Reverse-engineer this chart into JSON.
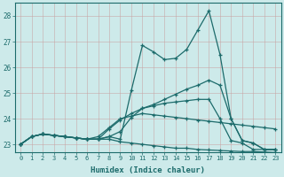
{
  "xlabel": "Humidex (Indice chaleur)",
  "bg_color": "#cdeaea",
  "grid_color": "#aed4d4",
  "line_color": "#1c6b6b",
  "xlim": [
    -0.5,
    23.5
  ],
  "ylim": [
    22.7,
    28.5
  ],
  "yticks": [
    23,
    24,
    25,
    26,
    27,
    28
  ],
  "xticks": [
    0,
    1,
    2,
    3,
    4,
    5,
    6,
    7,
    8,
    9,
    10,
    11,
    12,
    13,
    14,
    15,
    16,
    17,
    18,
    19,
    20,
    21,
    22,
    23
  ],
  "lines": [
    [
      23.0,
      23.3,
      23.4,
      23.35,
      23.3,
      23.25,
      23.2,
      23.2,
      23.3,
      23.2,
      25.1,
      26.85,
      26.6,
      26.3,
      26.35,
      26.7,
      27.45,
      28.2,
      26.5,
      24.0,
      23.15,
      23.05,
      22.8,
      22.8
    ],
    [
      23.0,
      23.3,
      23.4,
      23.35,
      23.3,
      23.25,
      23.2,
      23.2,
      23.3,
      23.5,
      24.05,
      24.4,
      24.55,
      24.75,
      24.95,
      25.15,
      25.3,
      25.5,
      25.3,
      24.0,
      23.15,
      23.05,
      22.8,
      22.8
    ],
    [
      23.0,
      23.3,
      23.4,
      23.35,
      23.3,
      23.25,
      23.2,
      23.2,
      23.6,
      23.95,
      24.2,
      24.4,
      24.5,
      24.6,
      24.65,
      24.7,
      24.75,
      24.75,
      24.0,
      23.15,
      23.05,
      22.8,
      22.8,
      22.8
    ],
    [
      23.0,
      23.3,
      23.4,
      23.35,
      23.3,
      23.25,
      23.2,
      23.3,
      23.65,
      24.0,
      24.1,
      24.2,
      24.15,
      24.1,
      24.05,
      24.0,
      23.95,
      23.9,
      23.85,
      23.8,
      23.75,
      23.7,
      23.65,
      23.6
    ],
    [
      23.0,
      23.3,
      23.4,
      23.35,
      23.3,
      23.25,
      23.2,
      23.2,
      23.2,
      23.1,
      23.05,
      23.0,
      22.95,
      22.9,
      22.85,
      22.85,
      22.8,
      22.78,
      22.76,
      22.74,
      22.72,
      22.72,
      22.7,
      22.68
    ]
  ]
}
